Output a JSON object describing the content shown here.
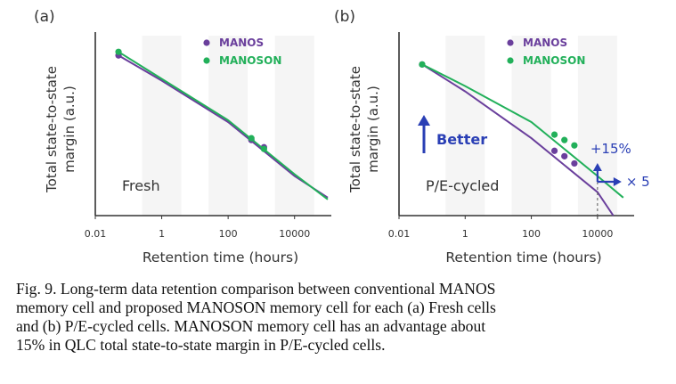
{
  "colors": {
    "manos": "#6a3f9c",
    "manoson": "#22b05a",
    "annotation": "#2a3fb5",
    "axis": "#333333",
    "band": "#ececec"
  },
  "legend": {
    "manos": "MANOS",
    "manoson": "MANOSON"
  },
  "caption": {
    "lines": [
      "Fig. 9. Long-term data retention comparison between conventional MANOS",
      "memory cell and proposed MANOSON memory cell for each (a) Fresh cells",
      "and (b) P/E-cycled cells. MANOSON memory cell has an advantage about",
      "15% in QLC total state-to-state margin in P/E-cycled cells."
    ]
  },
  "chart_data": [
    {
      "panel_label": "(a)",
      "type": "line",
      "annotation": "Fresh",
      "xlabel": "Retention time (hours)",
      "ylabel": [
        "Total state-to-state",
        "margin (a.u.)"
      ],
      "x_scale": "log",
      "xlim": [
        0.01,
        100000
      ],
      "ylim": [
        0,
        1
      ],
      "x_ticks": [
        0.01,
        1,
        100,
        10000
      ],
      "x_tick_labels": [
        "0.01",
        "1",
        "100",
        "10000"
      ],
      "legend_position": "top-right",
      "series": [
        {
          "name": "MANOS",
          "color_key": "manos",
          "curve": [
            [
              0.05,
              0.89
            ],
            [
              1,
              0.75
            ],
            [
              100,
              0.52
            ],
            [
              10000,
              0.22
            ],
            [
              100000,
              0.1
            ]
          ],
          "points": [
            [
              0.05,
              0.89
            ],
            [
              500,
              0.42
            ],
            [
              1200,
              0.38
            ]
          ]
        },
        {
          "name": "MANOSON",
          "color_key": "manoson",
          "curve": [
            [
              0.05,
              0.91
            ],
            [
              1,
              0.76
            ],
            [
              100,
              0.53
            ],
            [
              10000,
              0.23
            ],
            [
              100000,
              0.09
            ]
          ],
          "points": [
            [
              0.05,
              0.91
            ],
            [
              500,
              0.43
            ],
            [
              1200,
              0.37
            ]
          ]
        }
      ]
    },
    {
      "panel_label": "(b)",
      "type": "line",
      "annotation": "P/E-cycled",
      "better_label": "Better",
      "gain_label": "+15%",
      "factor_label": "× 5",
      "xlabel": "Retention time (hours)",
      "ylabel": [
        "Total state-to-state",
        "margin (a.u.)"
      ],
      "x_scale": "log",
      "xlim": [
        0.01,
        100000
      ],
      "ylim": [
        0,
        1
      ],
      "x_ticks": [
        0.01,
        1,
        100,
        10000
      ],
      "x_tick_labels": [
        "0.01",
        "1",
        "100",
        "10000"
      ],
      "legend_position": "top-right",
      "series": [
        {
          "name": "MANOS",
          "color_key": "manos",
          "curve": [
            [
              0.05,
              0.84
            ],
            [
              1,
              0.69
            ],
            [
              100,
              0.43
            ],
            [
              10000,
              0.13
            ],
            [
              30000,
              0.0
            ]
          ],
          "points": [
            [
              0.05,
              0.84
            ],
            [
              500,
              0.36
            ],
            [
              1000,
              0.33
            ],
            [
              2000,
              0.29
            ]
          ]
        },
        {
          "name": "MANOSON",
          "color_key": "manoson",
          "curve": [
            [
              0.05,
              0.84
            ],
            [
              1,
              0.72
            ],
            [
              100,
              0.52
            ],
            [
              10000,
              0.22
            ],
            [
              60000,
              0.1
            ]
          ],
          "points": [
            [
              0.05,
              0.84
            ],
            [
              500,
              0.45
            ],
            [
              1000,
              0.42
            ],
            [
              2000,
              0.39
            ]
          ]
        }
      ]
    }
  ]
}
